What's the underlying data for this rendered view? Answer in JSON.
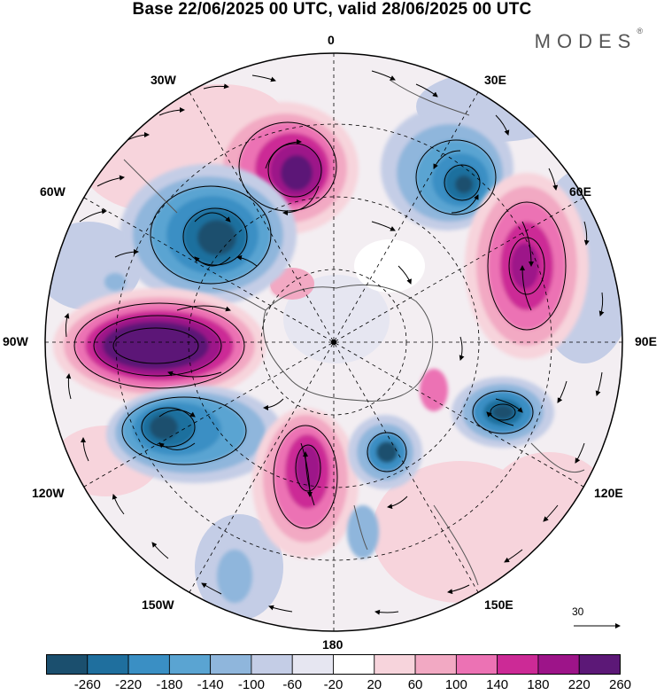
{
  "title": "Base 22/06/2025 00 UTC, valid 28/06/2025 00 UTC",
  "brand": "MODES",
  "brand_mark": "®",
  "longitude_labels": {
    "lon_0": "0",
    "lon_30e": "30E",
    "lon_60e": "60E",
    "lon_90e": "90E",
    "lon_120e": "120E",
    "lon_150e": "150E",
    "lon_180": "180",
    "lon_150w": "150W",
    "lon_120w": "120W",
    "lon_90w": "90W",
    "lon_60w": "60W",
    "lon_30w": "30W"
  },
  "reference_vector": "30",
  "colorbar": {
    "colors": [
      "#1b4f6e",
      "#1f6f9e",
      "#3a8fc4",
      "#5aa4d2",
      "#8fb6dc",
      "#c4cde6",
      "#e6e6f1",
      "#ffffff",
      "#f7d4dc",
      "#f2a9c3",
      "#ec72b4",
      "#cc2a96",
      "#9d1489",
      "#5c1877"
    ],
    "ticks": [
      "-260",
      "-220",
      "-180",
      "-140",
      "-100",
      "-60",
      "-20",
      "20",
      "60",
      "100",
      "140",
      "180",
      "220",
      "260"
    ]
  }
}
